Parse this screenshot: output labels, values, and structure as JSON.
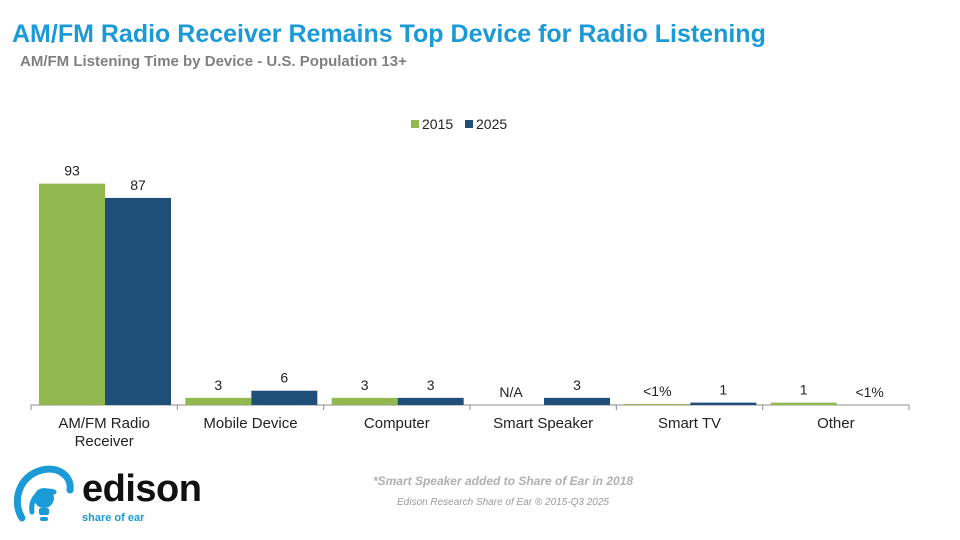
{
  "title": "AM/FM Radio Receiver Remains Top Device for Radio Listening",
  "subtitle": "AM/FM Listening Time by Device - U.S. Population 13+",
  "chart_data": {
    "type": "bar",
    "categories": [
      [
        "AM/FM Radio",
        "Receiver"
      ],
      [
        "Mobile Device"
      ],
      [
        "Computer"
      ],
      [
        "Smart Speaker"
      ],
      [
        "Smart TV"
      ],
      [
        "Other"
      ]
    ],
    "series": [
      {
        "name": "2015",
        "color": "#92b850",
        "values": [
          93,
          3,
          3,
          null,
          0.4,
          1
        ],
        "labels": [
          "93",
          "3",
          "3",
          "N/A",
          "<1%",
          "1"
        ]
      },
      {
        "name": "2025",
        "color": "#1f4e79",
        "values": [
          87,
          6,
          3,
          3,
          1,
          0
        ],
        "labels": [
          "87",
          "6",
          "3",
          "3",
          "1",
          "<1%"
        ]
      }
    ],
    "ylim": [
      0,
      100
    ],
    "legend_position": "top-center",
    "grid": false
  },
  "footnote": "*Smart Speaker added to Share of Ear in 2018",
  "source": "Edison Research Share of Ear ® 2015-Q3 2025",
  "logo": {
    "wordmark": "edison",
    "tagline": "share of ear",
    "icon": "lightbulb-swoosh-icon",
    "color": "#1a9ad6"
  }
}
